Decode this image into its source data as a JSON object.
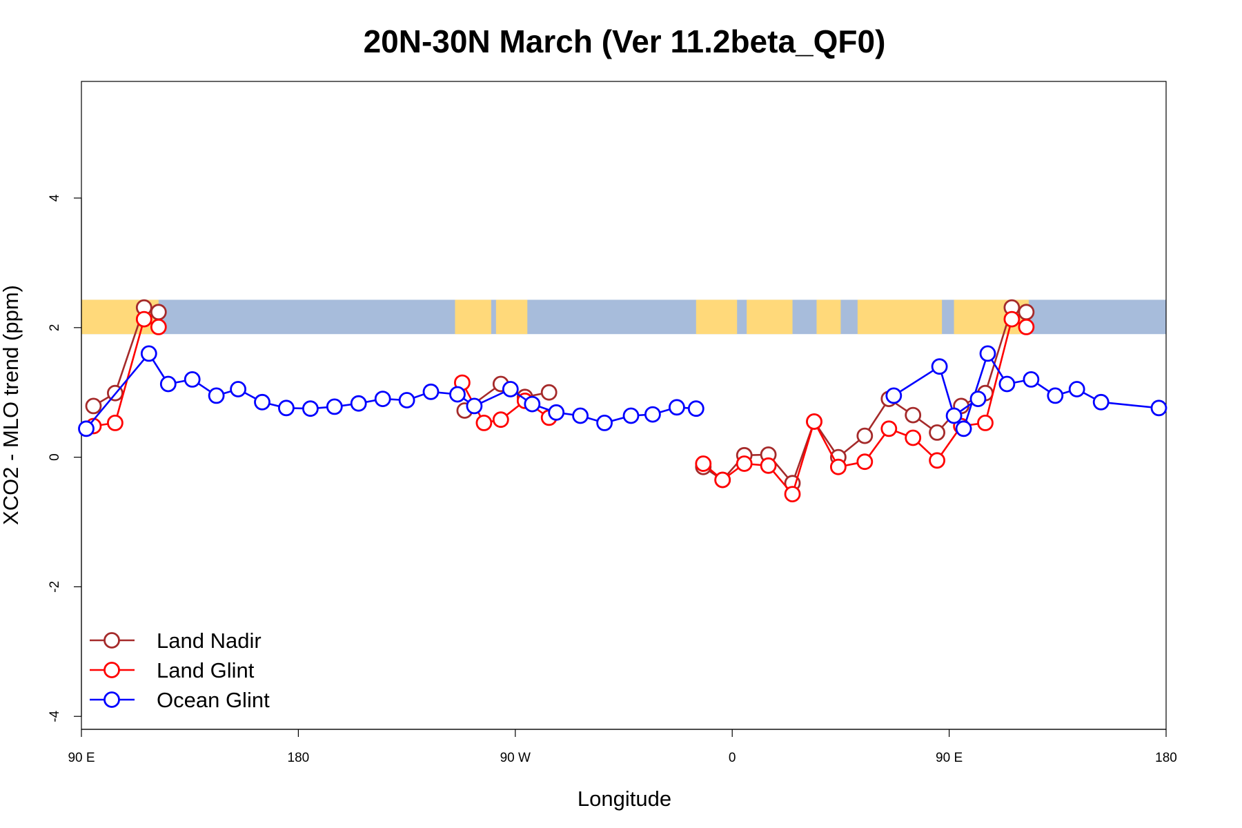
{
  "chart_data": {
    "type": "line",
    "title": "20N-30N March (Ver 11.2beta_QF0)",
    "xlabel": "Longitude",
    "ylabel": "XCO2 - MLO trend (ppm)",
    "xlim": [
      90,
      540
    ],
    "ylim": [
      -4.2,
      5.8
    ],
    "x_ticks": [
      {
        "value": 90,
        "label": "90 E"
      },
      {
        "value": 180,
        "label": "180"
      },
      {
        "value": 270,
        "label": "90 W"
      },
      {
        "value": 360,
        "label": "0"
      },
      {
        "value": 450,
        "label": "90 E"
      },
      {
        "value": 540,
        "label": "180"
      }
    ],
    "y_ticks": [
      {
        "value": -4,
        "label": "-4"
      },
      {
        "value": -2,
        "label": "-2"
      },
      {
        "value": 0,
        "label": "0"
      },
      {
        "value": 2,
        "label": "2"
      },
      {
        "value": 4,
        "label": "4"
      }
    ],
    "map_band": {
      "ymin": 1.9,
      "ymax": 2.43,
      "ocean_color": "#a7bcdb",
      "land_color": "#ffd97a",
      "land_ranges": [
        [
          90,
          122
        ],
        [
          245,
          260
        ],
        [
          262,
          275
        ],
        [
          345,
          362
        ],
        [
          366,
          385
        ],
        [
          395,
          405
        ],
        [
          412,
          447
        ],
        [
          452,
          483
        ]
      ]
    },
    "legend_position": "bottom-left",
    "series": [
      {
        "name": "Land Nadir",
        "color": "#a52a2a",
        "segments": [
          [
            [
              95,
              0.79
            ],
            [
              104,
              0.99
            ],
            [
              116,
              2.31
            ],
            [
              122,
              2.24
            ]
          ],
          [
            [
              249,
              0.72
            ],
            [
              264,
              1.13
            ],
            [
              274,
              0.93
            ],
            [
              284,
              1.0
            ]
          ],
          [
            [
              348,
              -0.15
            ],
            [
              356,
              -0.35
            ],
            [
              365,
              0.03
            ],
            [
              375,
              0.04
            ],
            [
              385,
              -0.4
            ],
            [
              394,
              0.55
            ],
            [
              404,
              0.0
            ],
            [
              415,
              0.33
            ],
            [
              425,
              0.9
            ],
            [
              435,
              0.65
            ],
            [
              445,
              0.38
            ],
            [
              455,
              0.79
            ],
            [
              465,
              0.99
            ],
            [
              476,
              2.31
            ],
            [
              482,
              2.24
            ]
          ]
        ]
      },
      {
        "name": "Land Glint",
        "color": "#ff0000",
        "segments": [
          [
            [
              95,
              0.48
            ],
            [
              104,
              0.53
            ],
            [
              116,
              2.13
            ],
            [
              122,
              2.01
            ]
          ],
          [
            [
              248,
              1.15
            ],
            [
              257,
              0.53
            ],
            [
              264,
              0.58
            ],
            [
              274,
              0.87
            ],
            [
              284,
              0.61
            ]
          ],
          [
            [
              348,
              -0.1
            ],
            [
              356,
              -0.35
            ],
            [
              365,
              -0.1
            ],
            [
              375,
              -0.13
            ],
            [
              385,
              -0.57
            ],
            [
              394,
              0.55
            ],
            [
              404,
              -0.15
            ],
            [
              415,
              -0.07
            ],
            [
              425,
              0.44
            ],
            [
              435,
              0.3
            ],
            [
              445,
              -0.05
            ],
            [
              455,
              0.48
            ],
            [
              465,
              0.53
            ],
            [
              476,
              2.13
            ],
            [
              482,
              2.01
            ]
          ]
        ]
      },
      {
        "name": "Ocean Glint",
        "color": "#0000ff",
        "segments": [
          [
            [
              92,
              0.44
            ],
            [
              118,
              1.6
            ],
            [
              126,
              1.13
            ],
            [
              136,
              1.2
            ],
            [
              146,
              0.95
            ],
            [
              155,
              1.05
            ],
            [
              165,
              0.85
            ],
            [
              175,
              0.76
            ],
            [
              185,
              0.75
            ],
            [
              195,
              0.78
            ],
            [
              205,
              0.83
            ],
            [
              215,
              0.9
            ],
            [
              225,
              0.88
            ],
            [
              235,
              1.01
            ],
            [
              246,
              0.97
            ],
            [
              253,
              0.79
            ],
            [
              268,
              1.05
            ],
            [
              277,
              0.82
            ],
            [
              287,
              0.69
            ],
            [
              297,
              0.64
            ],
            [
              307,
              0.53
            ],
            [
              318,
              0.64
            ],
            [
              327,
              0.66
            ],
            [
              337,
              0.77
            ],
            [
              345,
              0.75
            ]
          ],
          [
            [
              427,
              0.95
            ],
            [
              446,
              1.4
            ],
            [
              452,
              0.64
            ],
            [
              462,
              0.9
            ]
          ],
          [
            [
              456,
              0.44
            ],
            [
              466,
              1.6
            ],
            [
              474,
              1.13
            ],
            [
              484,
              1.2
            ],
            [
              494,
              0.95
            ],
            [
              503,
              1.05
            ],
            [
              513,
              0.85
            ],
            [
              537,
              0.76
            ]
          ]
        ]
      }
    ]
  }
}
